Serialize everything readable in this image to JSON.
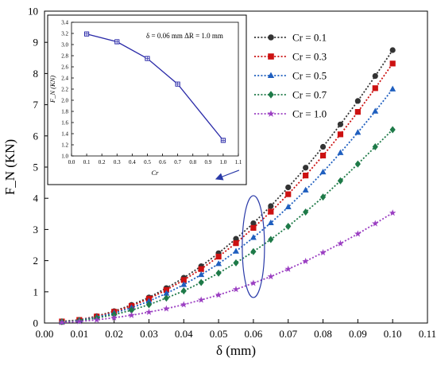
{
  "chart_data": [
    {
      "type": "line",
      "xlabel": "δ (mm)",
      "ylabel": "F_N (KN)",
      "xlim": [
        0.0,
        0.11
      ],
      "ylim": [
        0,
        10
      ],
      "xticks": [
        "0.00",
        "0.01",
        "0.02",
        "0.03",
        "0.04",
        "0.05",
        "0.06",
        "0.07",
        "0.08",
        "0.09",
        "0.10",
        "0.11"
      ],
      "yticks": [
        "0",
        "1",
        "2",
        "3",
        "4",
        "5",
        "6",
        "7",
        "8",
        "9",
        "10"
      ],
      "legend_position": "top-right",
      "grid": false,
      "x": [
        0.005,
        0.01,
        0.015,
        0.02,
        0.025,
        0.03,
        0.035,
        0.04,
        0.045,
        0.05,
        0.055,
        0.06,
        0.065,
        0.07,
        0.075,
        0.08,
        0.085,
        0.09,
        0.095,
        0.1
      ],
      "series": [
        {
          "name": "Cr = 0.1",
          "color": "#333333",
          "marker": "circle",
          "values": [
            0.05,
            0.1,
            0.22,
            0.38,
            0.58,
            0.82,
            1.12,
            1.45,
            1.82,
            2.24,
            2.7,
            3.2,
            3.75,
            4.35,
            4.98,
            5.65,
            6.37,
            7.12,
            7.92,
            8.75
          ]
        },
        {
          "name": "Cr = 0.3",
          "color": "#cc1111",
          "marker": "square",
          "values": [
            0.05,
            0.1,
            0.21,
            0.36,
            0.55,
            0.78,
            1.06,
            1.38,
            1.73,
            2.13,
            2.56,
            3.05,
            3.57,
            4.13,
            4.73,
            5.37,
            6.05,
            6.77,
            7.53,
            8.32
          ]
        },
        {
          "name": "Cr = 0.5",
          "color": "#1f5fbf",
          "marker": "triangle",
          "values": [
            0.04,
            0.09,
            0.19,
            0.32,
            0.49,
            0.7,
            0.95,
            1.23,
            1.55,
            1.9,
            2.3,
            2.74,
            3.21,
            3.72,
            4.26,
            4.84,
            5.46,
            6.11,
            6.79,
            7.5
          ]
        },
        {
          "name": "Cr = 0.7",
          "color": "#1e7a48",
          "marker": "diamond",
          "values": [
            0.04,
            0.08,
            0.16,
            0.27,
            0.41,
            0.59,
            0.8,
            1.03,
            1.3,
            1.6,
            1.93,
            2.29,
            2.68,
            3.1,
            3.56,
            4.04,
            4.56,
            5.1,
            5.65,
            6.2
          ]
        },
        {
          "name": "Cr = 1.0",
          "color": "#9b3fc2",
          "marker": "star",
          "values": [
            0.02,
            0.05,
            0.1,
            0.17,
            0.25,
            0.35,
            0.46,
            0.59,
            0.74,
            0.9,
            1.08,
            1.28,
            1.49,
            1.73,
            1.98,
            2.26,
            2.55,
            2.86,
            3.19,
            3.53
          ]
        }
      ]
    },
    {
      "type": "line",
      "xlabel": "Cr",
      "ylabel": "F_N (KN)",
      "xlim": [
        0.0,
        1.1
      ],
      "ylim": [
        1.0,
        3.4
      ],
      "xticks": [
        "0.0",
        "0.1",
        "0.2",
        "0.3",
        "0.4",
        "0.5",
        "0.6",
        "0.7",
        "0.8",
        "0.9",
        "1.0",
        "1.1"
      ],
      "yticks": [
        "1.0",
        "1.2",
        "1.4",
        "1.6",
        "1.8",
        "2.0",
        "2.2",
        "2.4",
        "2.6",
        "2.8",
        "3.0",
        "3.2",
        "3.4"
      ],
      "annotation": "δ = 0.06 mm   ΔR = 1.0 mm",
      "color": "#2a2aa8",
      "marker": "square-open",
      "x": [
        0.1,
        0.3,
        0.5,
        0.7,
        1.0
      ],
      "values": [
        3.19,
        3.05,
        2.75,
        2.29,
        1.28
      ]
    }
  ]
}
